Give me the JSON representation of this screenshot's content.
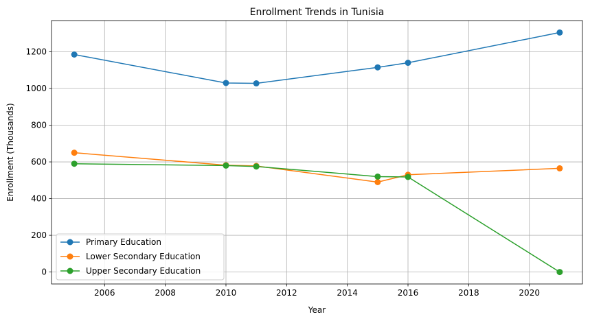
{
  "chart_data": {
    "type": "line",
    "title": "Enrollment Trends in Tunisia",
    "xlabel": "Year",
    "ylabel": "Enrollment (Thousands)",
    "xlim": [
      2004.25,
      2021.75
    ],
    "ylim": [
      -65,
      1370
    ],
    "xticks": [
      2006,
      2008,
      2010,
      2012,
      2014,
      2016,
      2018,
      2020
    ],
    "yticks": [
      0,
      200,
      400,
      600,
      800,
      1000,
      1200
    ],
    "grid": true,
    "legend_position": "lower left",
    "x": [
      2005,
      2010,
      2011,
      2015,
      2016,
      2021
    ],
    "series": [
      {
        "name": "Primary Education",
        "color": "#1f77b4",
        "values": [
          1185,
          1030,
          1028,
          1115,
          1140,
          1305
        ]
      },
      {
        "name": "Lower Secondary Education",
        "color": "#ff7f0e",
        "values": [
          650,
          582,
          578,
          490,
          530,
          565
        ]
      },
      {
        "name": "Upper Secondary Education",
        "color": "#2ca02c",
        "values": [
          590,
          580,
          575,
          520,
          518,
          0
        ]
      }
    ]
  }
}
